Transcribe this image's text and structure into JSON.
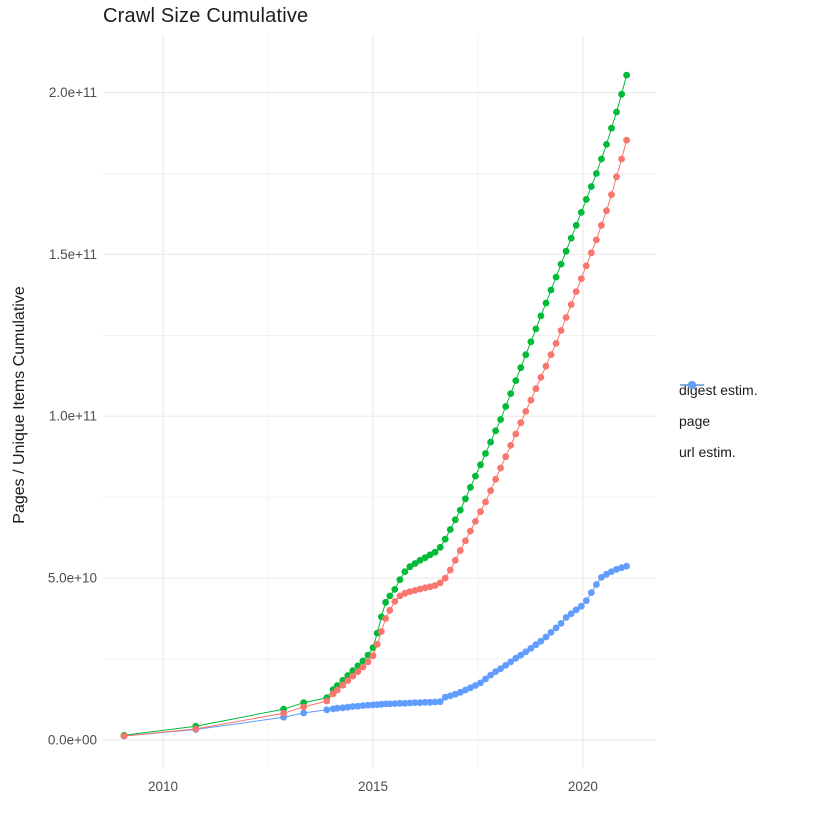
{
  "title": "Crawl Size Cumulative",
  "y_axis_title": "Pages / Unique Items Cumulative",
  "legend": {
    "position": "right",
    "items": [
      {
        "label": "digest estim.",
        "color": "#F8766D"
      },
      {
        "label": "page",
        "color": "#00BA38"
      },
      {
        "label": "url estim.",
        "color": "#619CFF"
      }
    ]
  },
  "colors": {
    "grid": "#EBEBEB",
    "tick_label": "#4d4d4d",
    "text": "#1c1c1c",
    "background": "#ffffff"
  },
  "chart_data": {
    "type": "scatter",
    "style": "points-with-line",
    "title": "Crawl Size Cumulative",
    "xlabel": "",
    "ylabel": "Pages / Unique Items Cumulative",
    "legend_position": "right",
    "grid": "major+minor",
    "xlim": [
      2008.57,
      2021.74
    ],
    "ylim": [
      -9000000000.0,
      217800000000.0
    ],
    "x_ticks": [
      2010,
      2015,
      2020
    ],
    "x_tick_labels": [
      "2010",
      "2015",
      "2020"
    ],
    "x_minor_ticks": [
      2012.5,
      2017.5
    ],
    "y_ticks": [
      0,
      50000000000.0,
      100000000000.0,
      150000000000.0,
      200000000000.0
    ],
    "y_tick_labels": [
      "0.0e+00",
      "5.0e+10",
      "1.0e+11",
      "1.5e+11",
      "2.0e+11"
    ],
    "y_minor_ticks": [
      25000000000.0,
      75000000000.0,
      125000000000.0,
      175000000000.0
    ],
    "x": [
      2009.07,
      2010.78,
      2012.87,
      2013.35,
      2013.9,
      2014.05,
      2014.15,
      2014.28,
      2014.4,
      2014.52,
      2014.64,
      2014.76,
      2014.88,
      2015.0,
      2015.1,
      2015.2,
      2015.3,
      2015.4,
      2015.52,
      2015.64,
      2015.76,
      2015.88,
      2016.0,
      2016.12,
      2016.24,
      2016.36,
      2016.48,
      2016.6,
      2016.72,
      2016.84,
      2016.96,
      2017.08,
      2017.2,
      2017.32,
      2017.44,
      2017.56,
      2017.68,
      2017.8,
      2017.92,
      2018.04,
      2018.16,
      2018.28,
      2018.4,
      2018.52,
      2018.64,
      2018.76,
      2018.88,
      2019.0,
      2019.12,
      2019.24,
      2019.36,
      2019.48,
      2019.6,
      2019.72,
      2019.84,
      2019.96,
      2020.08,
      2020.2,
      2020.32,
      2020.44,
      2020.56,
      2020.68,
      2020.8,
      2020.92,
      2021.04
    ],
    "series": [
      {
        "name": "digest estim.",
        "color": "#F8766D",
        "y": [
          1200000000.0,
          3400000000.0,
          8200000000.0,
          10200000000.0,
          12000000000.0,
          14200000000.0,
          15400000000.0,
          16900000000.0,
          18300000000.0,
          19700000000.0,
          21100000000.0,
          22500000000.0,
          24100000000.0,
          26000000000.0,
          29500000000.0,
          33500000000.0,
          37500000000.0,
          40000000000.0,
          42800000000.0,
          44500000000.0,
          45300000000.0,
          45800000000.0,
          46200000000.0,
          46600000000.0,
          47000000000.0,
          47300000000.0,
          47700000000.0,
          48500000000.0,
          50000000000.0,
          52500000000.0,
          55500000000.0,
          58500000000.0,
          61500000000.0,
          64500000000.0,
          67500000000.0,
          70500000000.0,
          73500000000.0,
          77000000000.0,
          80500000000.0,
          84000000000.0,
          87500000000.0,
          91000000000.0,
          94500000000.0,
          98000000000.0,
          101500000000.0,
          105000000000.0,
          108500000000.0,
          112000000000.0,
          115500000000.0,
          119000000000.0,
          122500000000.0,
          126500000000.0,
          130500000000.0,
          134500000000.0,
          138500000000.0,
          142500000000.0,
          146500000000.0,
          150500000000.0,
          154500000000.0,
          159000000000.0,
          163500000000.0,
          168500000000.0,
          174000000000.0,
          179500000000.0,
          185300000000.0
        ]
      },
      {
        "name": "page",
        "color": "#00BA38",
        "y": [
          1400000000.0,
          4200000000.0,
          9500000000.0,
          11500000000.0,
          13000000000.0,
          15500000000.0,
          16800000000.0,
          18400000000.0,
          19900000000.0,
          21400000000.0,
          22900000000.0,
          24400000000.0,
          26200000000.0,
          28500000000.0,
          33000000000.0,
          38000000000.0,
          42500000000.0,
          44500000000.0,
          46500000000.0,
          49500000000.0,
          52000000000.0,
          53500000000.0,
          54500000000.0,
          55500000000.0,
          56300000000.0,
          57200000000.0,
          58000000000.0,
          59500000000.0,
          62000000000.0,
          65000000000.0,
          68000000000.0,
          71000000000.0,
          74500000000.0,
          78000000000.0,
          81500000000.0,
          85000000000.0,
          88500000000.0,
          92000000000.0,
          95500000000.0,
          99000000000.0,
          103000000000.0,
          107000000000.0,
          111000000000.0,
          115000000000.0,
          119000000000.0,
          123000000000.0,
          127000000000.0,
          131000000000.0,
          135000000000.0,
          139000000000.0,
          143000000000.0,
          147000000000.0,
          151000000000.0,
          155000000000.0,
          159000000000.0,
          163000000000.0,
          167000000000.0,
          171000000000.0,
          175000000000.0,
          179500000000.0,
          184000000000.0,
          189000000000.0,
          194000000000.0,
          199500000000.0,
          205400000000.0
        ]
      },
      {
        "name": "url estim.",
        "color": "#619CFF",
        "y": [
          1200000000.0,
          3200000000.0,
          7000000000.0,
          8300000000.0,
          9300000000.0,
          9600000000.0,
          9800000000.0,
          9900000000.0,
          10100000000.0,
          10300000000.0,
          10400000000.0,
          10600000000.0,
          10700000000.0,
          10800000000.0,
          10900000000.0,
          11000000000.0,
          11100000000.0,
          11100000000.0,
          11200000000.0,
          11300000000.0,
          11300000000.0,
          11400000000.0,
          11500000000.0,
          11500000000.0,
          11600000000.0,
          11600000000.0,
          11700000000.0,
          11800000000.0,
          13200000000.0,
          13600000000.0,
          14100000000.0,
          14700000000.0,
          15400000000.0,
          16100000000.0,
          16800000000.0,
          17600000000.0,
          18800000000.0,
          20000000000.0,
          21100000000.0,
          22000000000.0,
          23000000000.0,
          24100000000.0,
          25200000000.0,
          26200000000.0,
          27200000000.0,
          28300000000.0,
          29400000000.0,
          30500000000.0,
          31800000000.0,
          33200000000.0,
          34600000000.0,
          36000000000.0,
          37800000000.0,
          39000000000.0,
          40200000000.0,
          41300000000.0,
          43000000000.0,
          45500000000.0,
          48000000000.0,
          50200000000.0,
          51200000000.0,
          52000000000.0,
          52700000000.0,
          53200000000.0,
          53700000000.0
        ]
      }
    ]
  }
}
